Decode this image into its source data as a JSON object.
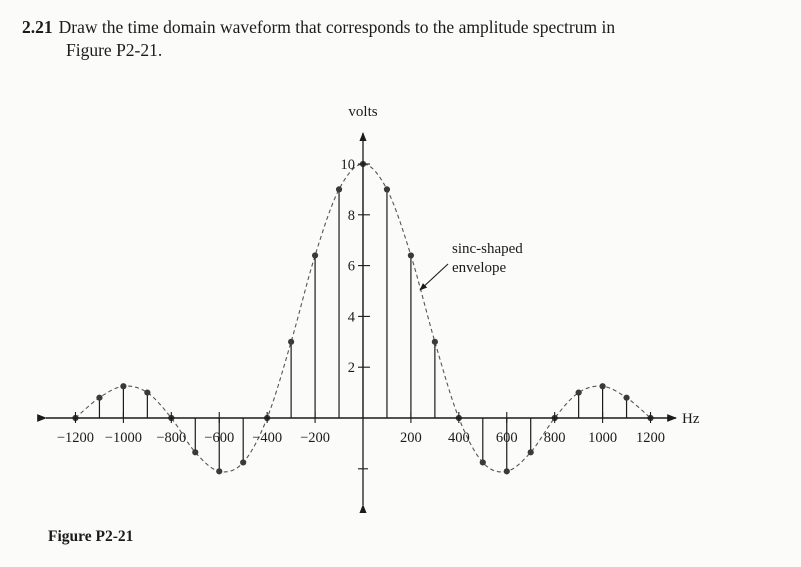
{
  "problem": {
    "number": "2.21",
    "text_line1": "Draw the time domain waveform that corresponds to the amplitude spectrum in",
    "text_line2": "Figure P2-21."
  },
  "caption": "Figure P2-21",
  "chart_data": {
    "type": "stem",
    "ylabel": "volts",
    "xlabel": "Hz",
    "xlim": [
      -1250,
      1250
    ],
    "ylim": [
      -2.5,
      10.6
    ],
    "y_ticks": [
      2,
      4,
      6,
      8,
      10
    ],
    "y_tick_labels": [
      "2",
      "4",
      "6",
      "8",
      "10"
    ],
    "x_ticks": [
      -1200,
      -1000,
      -800,
      -600,
      -400,
      -200,
      200,
      400,
      600,
      800,
      1000,
      1200
    ],
    "x_tick_labels": [
      "−1200",
      "−1000",
      "−800",
      "−600",
      "−400",
      "−200",
      "200",
      "400",
      "600",
      "800",
      "1000",
      "1200"
    ],
    "points": [
      {
        "x": -1200,
        "y": 0
      },
      {
        "x": -1100,
        "y": 0.8
      },
      {
        "x": -1000,
        "y": 1.25
      },
      {
        "x": -900,
        "y": 1.0
      },
      {
        "x": -800,
        "y": 0
      },
      {
        "x": -700,
        "y": -1.35
      },
      {
        "x": -600,
        "y": -2.1
      },
      {
        "x": -500,
        "y": -1.75
      },
      {
        "x": -400,
        "y": 0
      },
      {
        "x": -300,
        "y": 3.0
      },
      {
        "x": -200,
        "y": 6.4
      },
      {
        "x": -100,
        "y": 9.0
      },
      {
        "x": 0,
        "y": 10
      },
      {
        "x": 100,
        "y": 9.0
      },
      {
        "x": 200,
        "y": 6.4
      },
      {
        "x": 300,
        "y": 3.0
      },
      {
        "x": 400,
        "y": 0
      },
      {
        "x": 500,
        "y": -1.75
      },
      {
        "x": 600,
        "y": -2.1
      },
      {
        "x": 700,
        "y": -1.35
      },
      {
        "x": 800,
        "y": 0
      },
      {
        "x": 900,
        "y": 1.0
      },
      {
        "x": 1000,
        "y": 1.25
      },
      {
        "x": 1100,
        "y": 0.8
      },
      {
        "x": 1200,
        "y": 0
      }
    ],
    "annotation": {
      "line1": "sinc-shaped",
      "line2": "envelope"
    }
  }
}
